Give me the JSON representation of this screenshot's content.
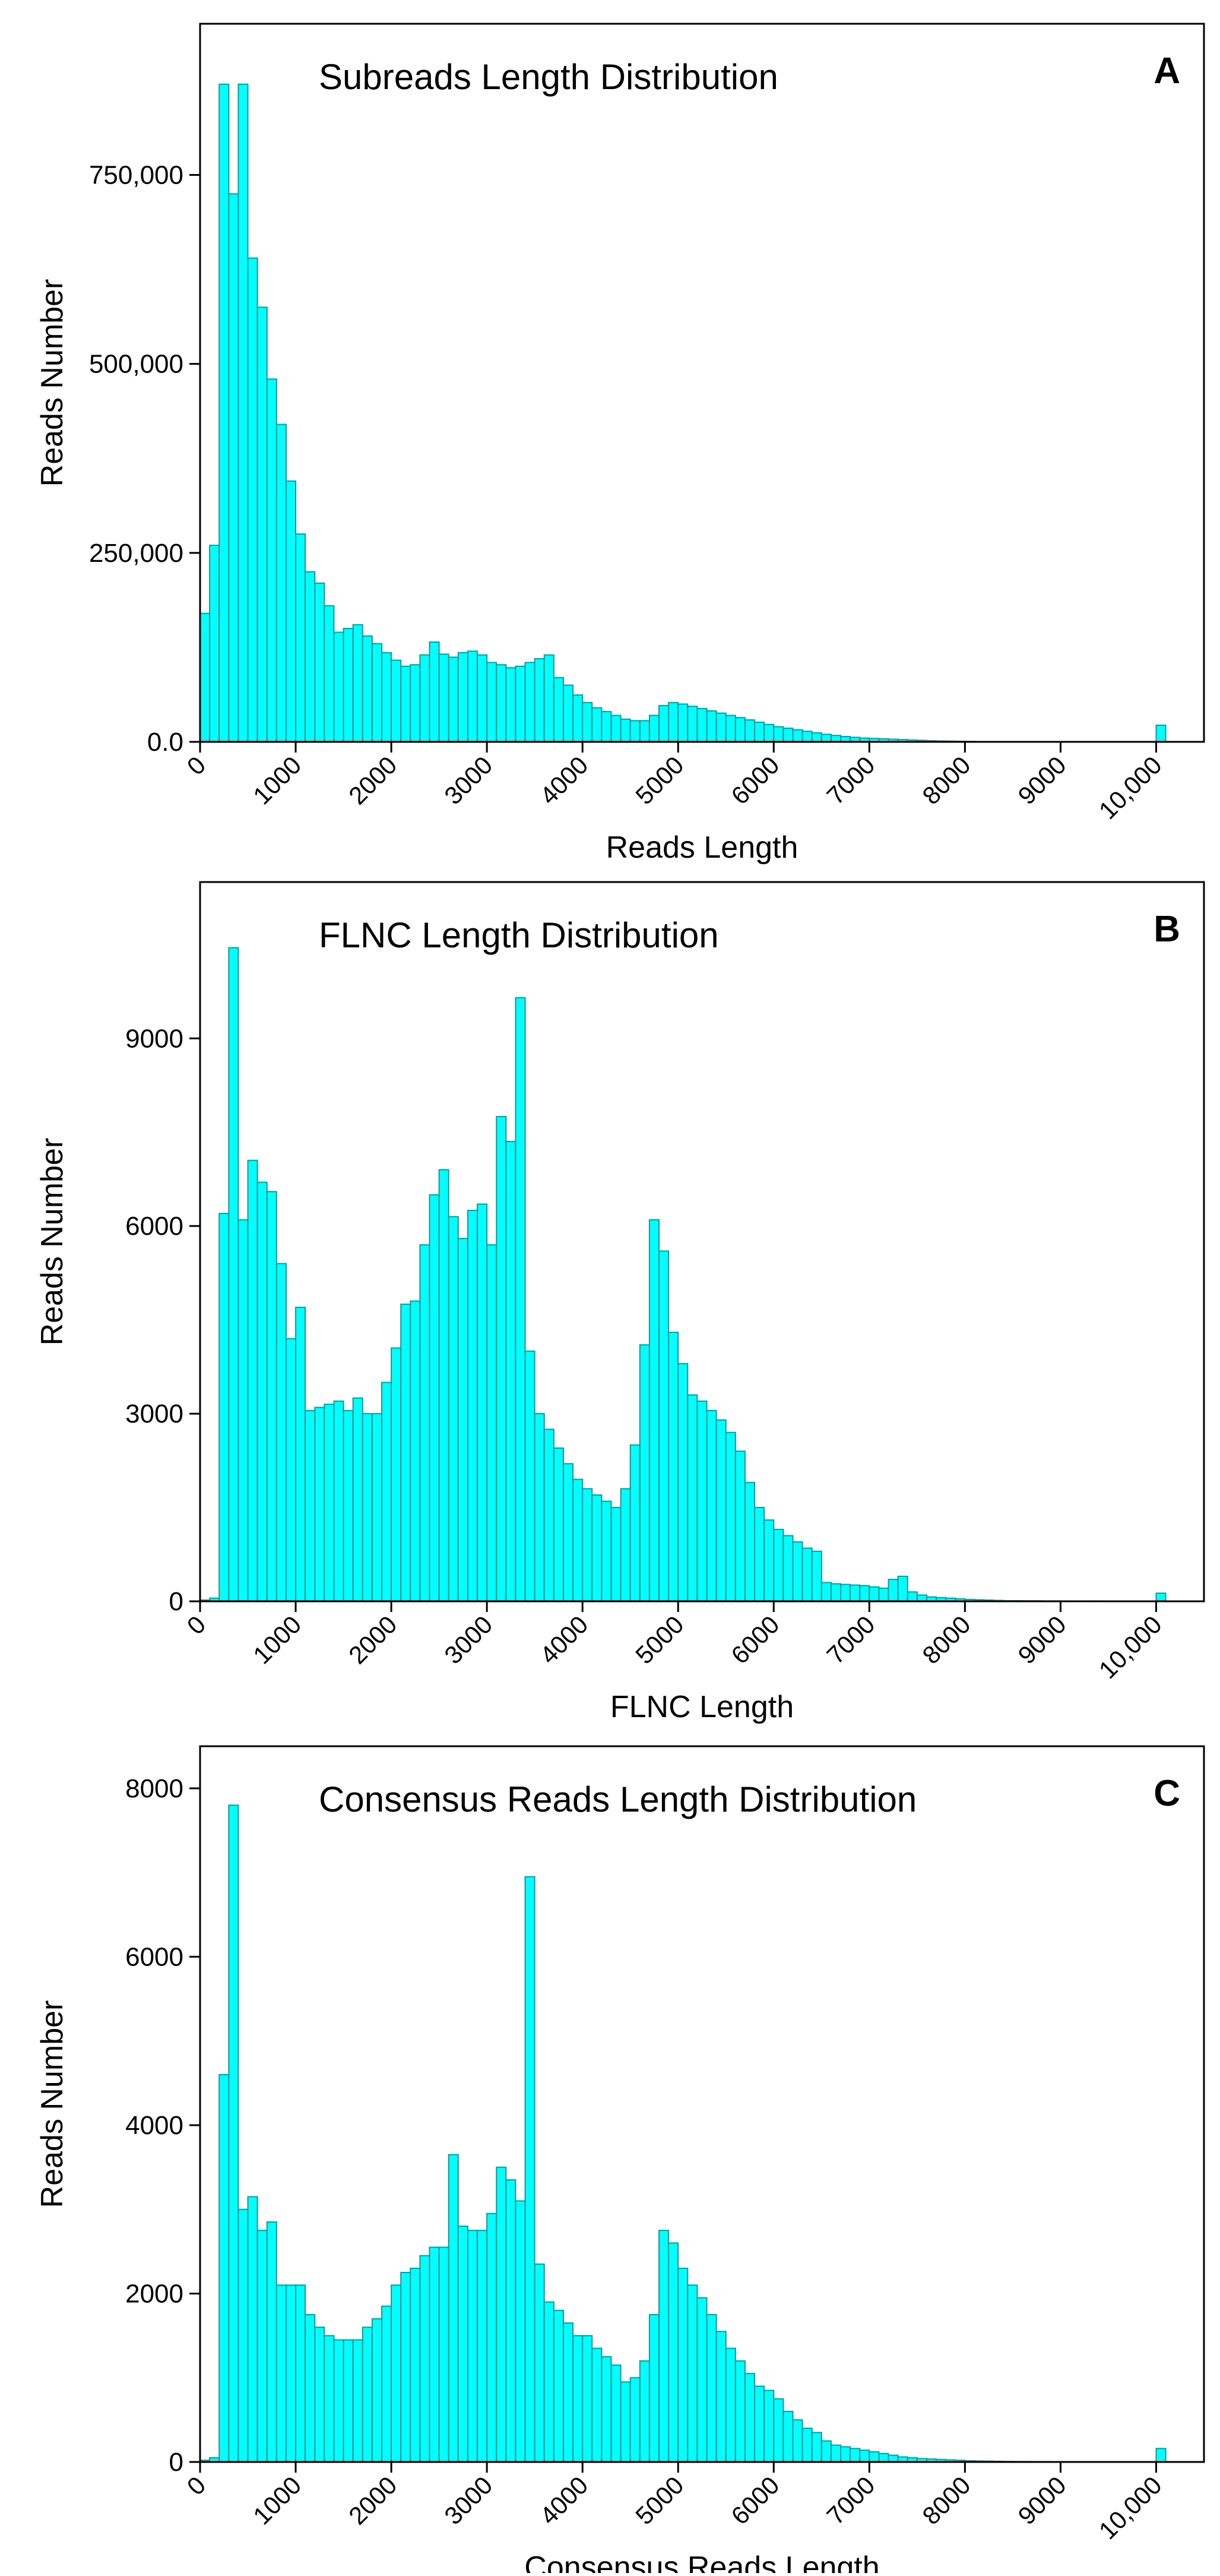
{
  "colors": {
    "bar_fill": "#00ffff",
    "bar_stroke": "#2a8f8f",
    "axis": "#000000",
    "background": "#ffffff"
  },
  "chart_data": [
    {
      "type": "bar",
      "panel_label": "A",
      "title": "Subreads Length Distribution",
      "xlabel": "Reads Length",
      "ylabel": "Reads Number",
      "xlim": [
        0,
        10500
      ],
      "ylim": [
        0,
        950000
      ],
      "bin_width": 100,
      "x_ticks": [
        0,
        1000,
        2000,
        3000,
        4000,
        5000,
        6000,
        7000,
        8000,
        9000,
        10000
      ],
      "x_tick_labels": [
        "0",
        "1000",
        "2000",
        "3000",
        "4000",
        "5000",
        "6000",
        "7000",
        "8000",
        "9000",
        "10,000"
      ],
      "y_ticks": [
        0,
        250000,
        500000,
        750000
      ],
      "y_tick_labels": [
        "0.0",
        "250,000",
        "500,000",
        "750,000"
      ],
      "bin_start": [
        0,
        100,
        200,
        300,
        400,
        500,
        600,
        700,
        800,
        900,
        1000,
        1100,
        1200,
        1300,
        1400,
        1500,
        1600,
        1700,
        1800,
        1900,
        2000,
        2100,
        2200,
        2300,
        2400,
        2500,
        2600,
        2700,
        2800,
        2900,
        3000,
        3100,
        3200,
        3300,
        3400,
        3500,
        3600,
        3700,
        3800,
        3900,
        4000,
        4100,
        4200,
        4300,
        4400,
        4500,
        4600,
        4700,
        4800,
        4900,
        5000,
        5100,
        5200,
        5300,
        5400,
        5500,
        5600,
        5700,
        5800,
        5900,
        6000,
        6100,
        6200,
        6300,
        6400,
        6500,
        6600,
        6700,
        6800,
        6900,
        7000,
        7100,
        7200,
        7300,
        7400,
        7500,
        7600,
        7700,
        7800,
        7900,
        8000,
        8100,
        8200,
        8300,
        8400,
        8500,
        8600,
        8700,
        8800,
        8900,
        9000,
        9100,
        9200,
        9300,
        9400,
        9500,
        9600,
        9700,
        9800,
        9900,
        10000
      ],
      "values": [
        170000,
        260000,
        870000,
        725000,
        870000,
        640000,
        575000,
        480000,
        420000,
        345000,
        275000,
        225000,
        210000,
        180000,
        145000,
        150000,
        155000,
        140000,
        130000,
        118000,
        108000,
        100000,
        102000,
        115000,
        132000,
        116000,
        112000,
        118000,
        120000,
        115000,
        105000,
        102000,
        98000,
        100000,
        105000,
        110000,
        115000,
        85000,
        75000,
        62000,
        52000,
        45000,
        40000,
        35000,
        30000,
        28000,
        28000,
        35000,
        48000,
        52000,
        50000,
        47000,
        44000,
        41000,
        38000,
        35000,
        32000,
        29000,
        26000,
        23000,
        20000,
        18000,
        16000,
        14000,
        12000,
        10000,
        8500,
        7000,
        6000,
        5000,
        4500,
        4000,
        3500,
        3000,
        2500,
        2000,
        1500,
        1200,
        1000,
        800,
        600,
        400,
        300,
        200,
        100,
        0,
        0,
        0,
        0,
        0,
        0,
        0,
        0,
        0,
        0,
        0,
        0,
        0,
        0,
        0,
        22000
      ]
    },
    {
      "type": "bar",
      "panel_label": "B",
      "title": "FLNC Length Distribution",
      "xlabel": "FLNC Length",
      "ylabel": "Reads Number",
      "xlim": [
        0,
        10500
      ],
      "ylim": [
        0,
        11500
      ],
      "bin_width": 100,
      "x_ticks": [
        0,
        1000,
        2000,
        3000,
        4000,
        5000,
        6000,
        7000,
        8000,
        9000,
        10000
      ],
      "x_tick_labels": [
        "0",
        "1000",
        "2000",
        "3000",
        "4000",
        "5000",
        "6000",
        "7000",
        "8000",
        "9000",
        "10,000"
      ],
      "y_ticks": [
        0,
        3000,
        6000,
        9000
      ],
      "y_tick_labels": [
        "0",
        "3000",
        "6000",
        "9000"
      ],
      "bin_start": [
        0,
        100,
        200,
        300,
        400,
        500,
        600,
        700,
        800,
        900,
        1000,
        1100,
        1200,
        1300,
        1400,
        1500,
        1600,
        1700,
        1800,
        1900,
        2000,
        2100,
        2200,
        2300,
        2400,
        2500,
        2600,
        2700,
        2800,
        2900,
        3000,
        3100,
        3200,
        3300,
        3400,
        3500,
        3600,
        3700,
        3800,
        3900,
        4000,
        4100,
        4200,
        4300,
        4400,
        4500,
        4600,
        4700,
        4800,
        4900,
        5000,
        5100,
        5200,
        5300,
        5400,
        5500,
        5600,
        5700,
        5800,
        5900,
        6000,
        6100,
        6200,
        6300,
        6400,
        6500,
        6600,
        6700,
        6800,
        6900,
        7000,
        7100,
        7200,
        7300,
        7400,
        7500,
        7600,
        7700,
        7800,
        7900,
        8000,
        8100,
        8200,
        8300,
        8400,
        8500,
        8600,
        8700,
        8800,
        8900,
        9000,
        9100,
        9200,
        9300,
        9400,
        9500,
        9600,
        9700,
        9800,
        9900,
        10000
      ],
      "values": [
        20,
        50,
        6200,
        10450,
        6100,
        7050,
        6700,
        6550,
        5400,
        4200,
        4700,
        3050,
        3100,
        3150,
        3200,
        3050,
        3250,
        3000,
        3000,
        3500,
        4050,
        4750,
        4800,
        5700,
        6500,
        6900,
        6150,
        5800,
        6250,
        6350,
        5700,
        7750,
        7350,
        9650,
        4000,
        3000,
        2750,
        2450,
        2200,
        1950,
        1800,
        1700,
        1600,
        1500,
        1800,
        2500,
        4100,
        6100,
        5600,
        4300,
        3800,
        3300,
        3200,
        3050,
        2900,
        2700,
        2400,
        1900,
        1500,
        1300,
        1150,
        1050,
        950,
        850,
        800,
        300,
        280,
        270,
        260,
        250,
        230,
        210,
        350,
        400,
        150,
        100,
        70,
        60,
        50,
        40,
        30,
        25,
        20,
        15,
        10,
        10,
        8,
        8,
        6,
        6,
        5,
        5,
        5,
        5,
        3,
        3,
        3,
        3,
        3,
        3,
        130
      ]
    },
    {
      "type": "bar",
      "panel_label": "C",
      "title": "Consensus Reads Length Distribution",
      "xlabel": "Consensus Reads Length",
      "ylabel": "Reads Number",
      "xlim": [
        0,
        10500
      ],
      "ylim": [
        0,
        8500
      ],
      "bin_width": 100,
      "x_ticks": [
        0,
        1000,
        2000,
        3000,
        4000,
        5000,
        6000,
        7000,
        8000,
        9000,
        10000
      ],
      "x_tick_labels": [
        "0",
        "1000",
        "2000",
        "3000",
        "4000",
        "5000",
        "6000",
        "7000",
        "8000",
        "9000",
        "10,000"
      ],
      "y_ticks": [
        0,
        2000,
        4000,
        6000,
        8000
      ],
      "y_tick_labels": [
        "0",
        "2000",
        "4000",
        "6000",
        "8000"
      ],
      "bin_start": [
        0,
        100,
        200,
        300,
        400,
        500,
        600,
        700,
        800,
        900,
        1000,
        1100,
        1200,
        1300,
        1400,
        1500,
        1600,
        1700,
        1800,
        1900,
        2000,
        2100,
        2200,
        2300,
        2400,
        2500,
        2600,
        2700,
        2800,
        2900,
        3000,
        3100,
        3200,
        3300,
        3400,
        3500,
        3600,
        3700,
        3800,
        3900,
        4000,
        4100,
        4200,
        4300,
        4400,
        4500,
        4600,
        4700,
        4800,
        4900,
        5000,
        5100,
        5200,
        5300,
        5400,
        5500,
        5600,
        5700,
        5800,
        5900,
        6000,
        6100,
        6200,
        6300,
        6400,
        6500,
        6600,
        6700,
        6800,
        6900,
        7000,
        7100,
        7200,
        7300,
        7400,
        7500,
        7600,
        7700,
        7800,
        7900,
        8000,
        8100,
        8200,
        8300,
        8400,
        8500,
        8600,
        8700,
        8800,
        8900,
        9000,
        9100,
        9200,
        9300,
        9400,
        9500,
        9600,
        9700,
        9800,
        9900,
        10000
      ],
      "values": [
        20,
        50,
        4600,
        7800,
        3000,
        3150,
        2750,
        2850,
        2100,
        2100,
        2100,
        1750,
        1600,
        1500,
        1450,
        1450,
        1450,
        1600,
        1700,
        1850,
        2100,
        2250,
        2300,
        2450,
        2550,
        2550,
        3650,
        2800,
        2750,
        2750,
        2950,
        3500,
        3350,
        3100,
        6950,
        2350,
        1900,
        1800,
        1650,
        1500,
        1500,
        1350,
        1250,
        1150,
        950,
        1000,
        1200,
        1750,
        2750,
        2600,
        2300,
        2100,
        1950,
        1750,
        1550,
        1350,
        1200,
        1050,
        900,
        850,
        750,
        600,
        500,
        400,
        350,
        250,
        200,
        180,
        160,
        140,
        120,
        100,
        80,
        60,
        50,
        40,
        35,
        30,
        25,
        20,
        15,
        12,
        10,
        8,
        6,
        5,
        5,
        4,
        4,
        3,
        3,
        3,
        3,
        3,
        3,
        3,
        3,
        3,
        3,
        3,
        160
      ]
    }
  ]
}
